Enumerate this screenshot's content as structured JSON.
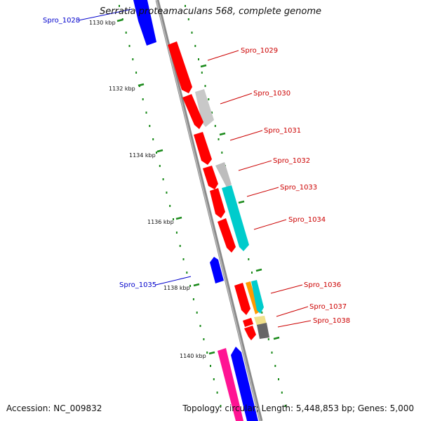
{
  "title": "Serratia proteamaculans 568, complete genome",
  "footer": {
    "accession": "Accession: NC_009832",
    "summary": "Topology: circular; Length: 5,448,853 bp; Genes: 5,000"
  },
  "colors": {
    "forward_label": "#cc0000",
    "reverse_label": "#0000cc",
    "scale_tick": "#1a8a1a",
    "backbone": "#888888"
  },
  "map": {
    "kbp_labels": [
      "1130 kbp",
      "1132 kbp",
      "1134 kbp",
      "1136 kbp",
      "1138 kbp",
      "1140 kbp"
    ],
    "genes": [
      {
        "name": "Spro_1028",
        "strand": "reverse",
        "color": "#0000ff"
      },
      {
        "name": "Spro_1029",
        "strand": "forward",
        "color": "#ff0000"
      },
      {
        "name": "Spro_1030",
        "strand": "forward",
        "color": "#c8c8c8"
      },
      {
        "name": "Spro_1031",
        "strand": "forward",
        "color": "#ff0000"
      },
      {
        "name": "Spro_1032",
        "strand": "forward",
        "color": "#ff0000"
      },
      {
        "name": "Spro_1033",
        "strand": "forward",
        "color": "#bdbdbd"
      },
      {
        "name": "Spro_1034",
        "strand": "forward",
        "color": "#00cccc"
      },
      {
        "name": "Spro_1035",
        "strand": "reverse",
        "color": "#0000ff"
      },
      {
        "name": "Spro_1036",
        "strand": "forward",
        "color": "#ff0000"
      },
      {
        "name": "Spro_1037",
        "strand": "forward",
        "color": "#ff9900"
      },
      {
        "name": "Spro_1038",
        "strand": "forward",
        "color": "#ff0000"
      }
    ],
    "unlabeled_features": [
      {
        "kind": "cds",
        "strand": "forward",
        "color": "#ff0000"
      },
      {
        "kind": "cds",
        "strand": "forward",
        "color": "#00cccc"
      },
      {
        "kind": "cds",
        "strand": "forward",
        "color": "#ff0000"
      },
      {
        "kind": "cds",
        "strand": "forward",
        "color": "#ff0000"
      },
      {
        "kind": "cds",
        "strand": "forward",
        "color": "#f0e08a"
      },
      {
        "kind": "cds",
        "strand": "forward",
        "color": "#666666"
      },
      {
        "kind": "cds",
        "strand": "forward",
        "color": "#ff1493"
      },
      {
        "kind": "cds",
        "strand": "reverse",
        "color": "#0000ff"
      }
    ]
  }
}
